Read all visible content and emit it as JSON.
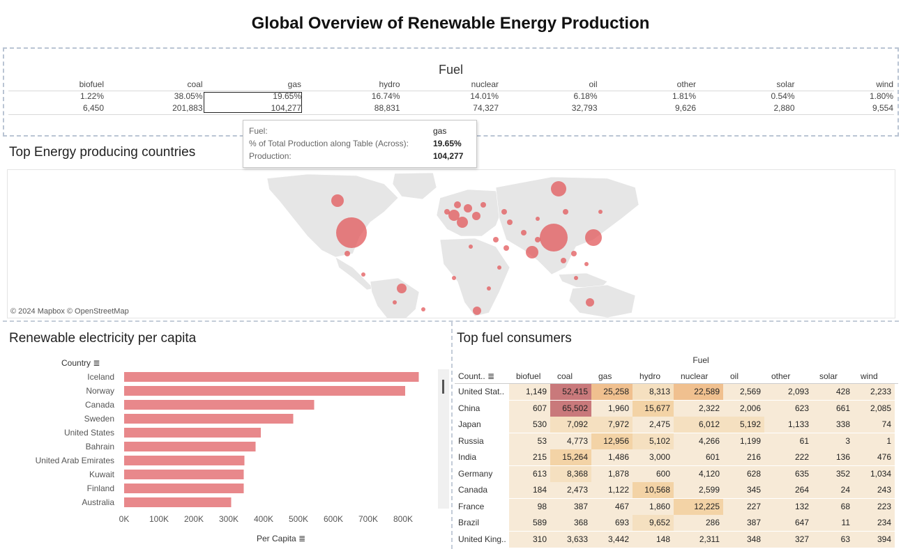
{
  "dashboard": {
    "title": "Global Overview of Renewable Energy Production"
  },
  "fuel_summary": {
    "header": "Fuel",
    "columns": [
      "biofuel",
      "coal",
      "gas",
      "hydro",
      "nuclear",
      "oil",
      "other",
      "solar",
      "wind"
    ],
    "percent": [
      "1.22%",
      "38.05%",
      "19.65%",
      "16.74%",
      "14.01%",
      "6.18%",
      "1.81%",
      "0.54%",
      "1.80%"
    ],
    "production": [
      "6,450",
      "201,883",
      "104,277",
      "88,831",
      "74,327",
      "32,793",
      "9,626",
      "2,880",
      "9,554"
    ],
    "selected": "gas"
  },
  "tooltip": {
    "rows": [
      {
        "label": "Fuel:",
        "value": "gas"
      },
      {
        "label": "% of Total Production along Table (Across):",
        "value": "19.65%"
      },
      {
        "label": "Production:",
        "value": "104,277"
      }
    ]
  },
  "map_section": {
    "title": "Top Energy producing countries",
    "credit": "© 2024 Mapbox © OpenStreetMap",
    "bubble_color": "#e15759"
  },
  "per_capita": {
    "title": "Renewable electricity per capita",
    "row_header": "Country",
    "axis_title": "Per Capita",
    "bar_color": "#e8888b"
  },
  "chart_data": {
    "type": "bar",
    "orientation": "horizontal",
    "categories": [
      "Iceland",
      "Norway",
      "Canada",
      "Sweden",
      "United States",
      "Bahrain",
      "United Arab Emirates",
      "Kuwait",
      "Finland",
      "Australia"
    ],
    "values": [
      845000,
      806000,
      545000,
      485000,
      392000,
      377000,
      345000,
      343000,
      343000,
      307000
    ],
    "xlabel": "Per Capita",
    "ylabel": "Country",
    "xlim": [
      0,
      900000
    ],
    "ticks": [
      "0K",
      "100K",
      "200K",
      "300K",
      "400K",
      "500K",
      "600K",
      "700K",
      "800K"
    ]
  },
  "consumers": {
    "title": "Top fuel consumers",
    "fuel_header": "Fuel",
    "row_header": "Count..",
    "columns": [
      "biofuel",
      "coal",
      "gas",
      "hydro",
      "nuclear",
      "oil",
      "other",
      "solar",
      "wind"
    ],
    "rows": [
      {
        "country": "United Stat..",
        "values": [
          "1,149",
          "52,415",
          "25,258",
          "8,313",
          "22,589",
          "2,569",
          "2,093",
          "428",
          "2,233"
        ]
      },
      {
        "country": "China",
        "values": [
          "607",
          "65,502",
          "1,960",
          "15,677",
          "2,322",
          "2,006",
          "623",
          "661",
          "2,085"
        ]
      },
      {
        "country": "Japan",
        "values": [
          "530",
          "7,092",
          "7,972",
          "2,475",
          "6,012",
          "5,192",
          "1,133",
          "338",
          "74"
        ]
      },
      {
        "country": "Russia",
        "values": [
          "53",
          "4,773",
          "12,956",
          "5,102",
          "4,266",
          "1,199",
          "61",
          "3",
          "1"
        ]
      },
      {
        "country": "India",
        "values": [
          "215",
          "15,264",
          "1,486",
          "3,000",
          "601",
          "216",
          "222",
          "136",
          "476"
        ]
      },
      {
        "country": "Germany",
        "values": [
          "613",
          "8,368",
          "1,878",
          "600",
          "4,120",
          "628",
          "635",
          "352",
          "1,034"
        ]
      },
      {
        "country": "Canada",
        "values": [
          "184",
          "2,473",
          "1,122",
          "10,568",
          "2,599",
          "345",
          "264",
          "24",
          "243"
        ]
      },
      {
        "country": "France",
        "values": [
          "98",
          "387",
          "467",
          "1,860",
          "12,225",
          "227",
          "132",
          "68",
          "223"
        ]
      },
      {
        "country": "Brazil",
        "values": [
          "589",
          "368",
          "693",
          "9,652",
          "286",
          "387",
          "647",
          "11",
          "234"
        ]
      },
      {
        "country": "United King..",
        "values": [
          "310",
          "3,633",
          "3,442",
          "148",
          "2,311",
          "348",
          "327",
          "63",
          "394"
        ]
      }
    ]
  }
}
